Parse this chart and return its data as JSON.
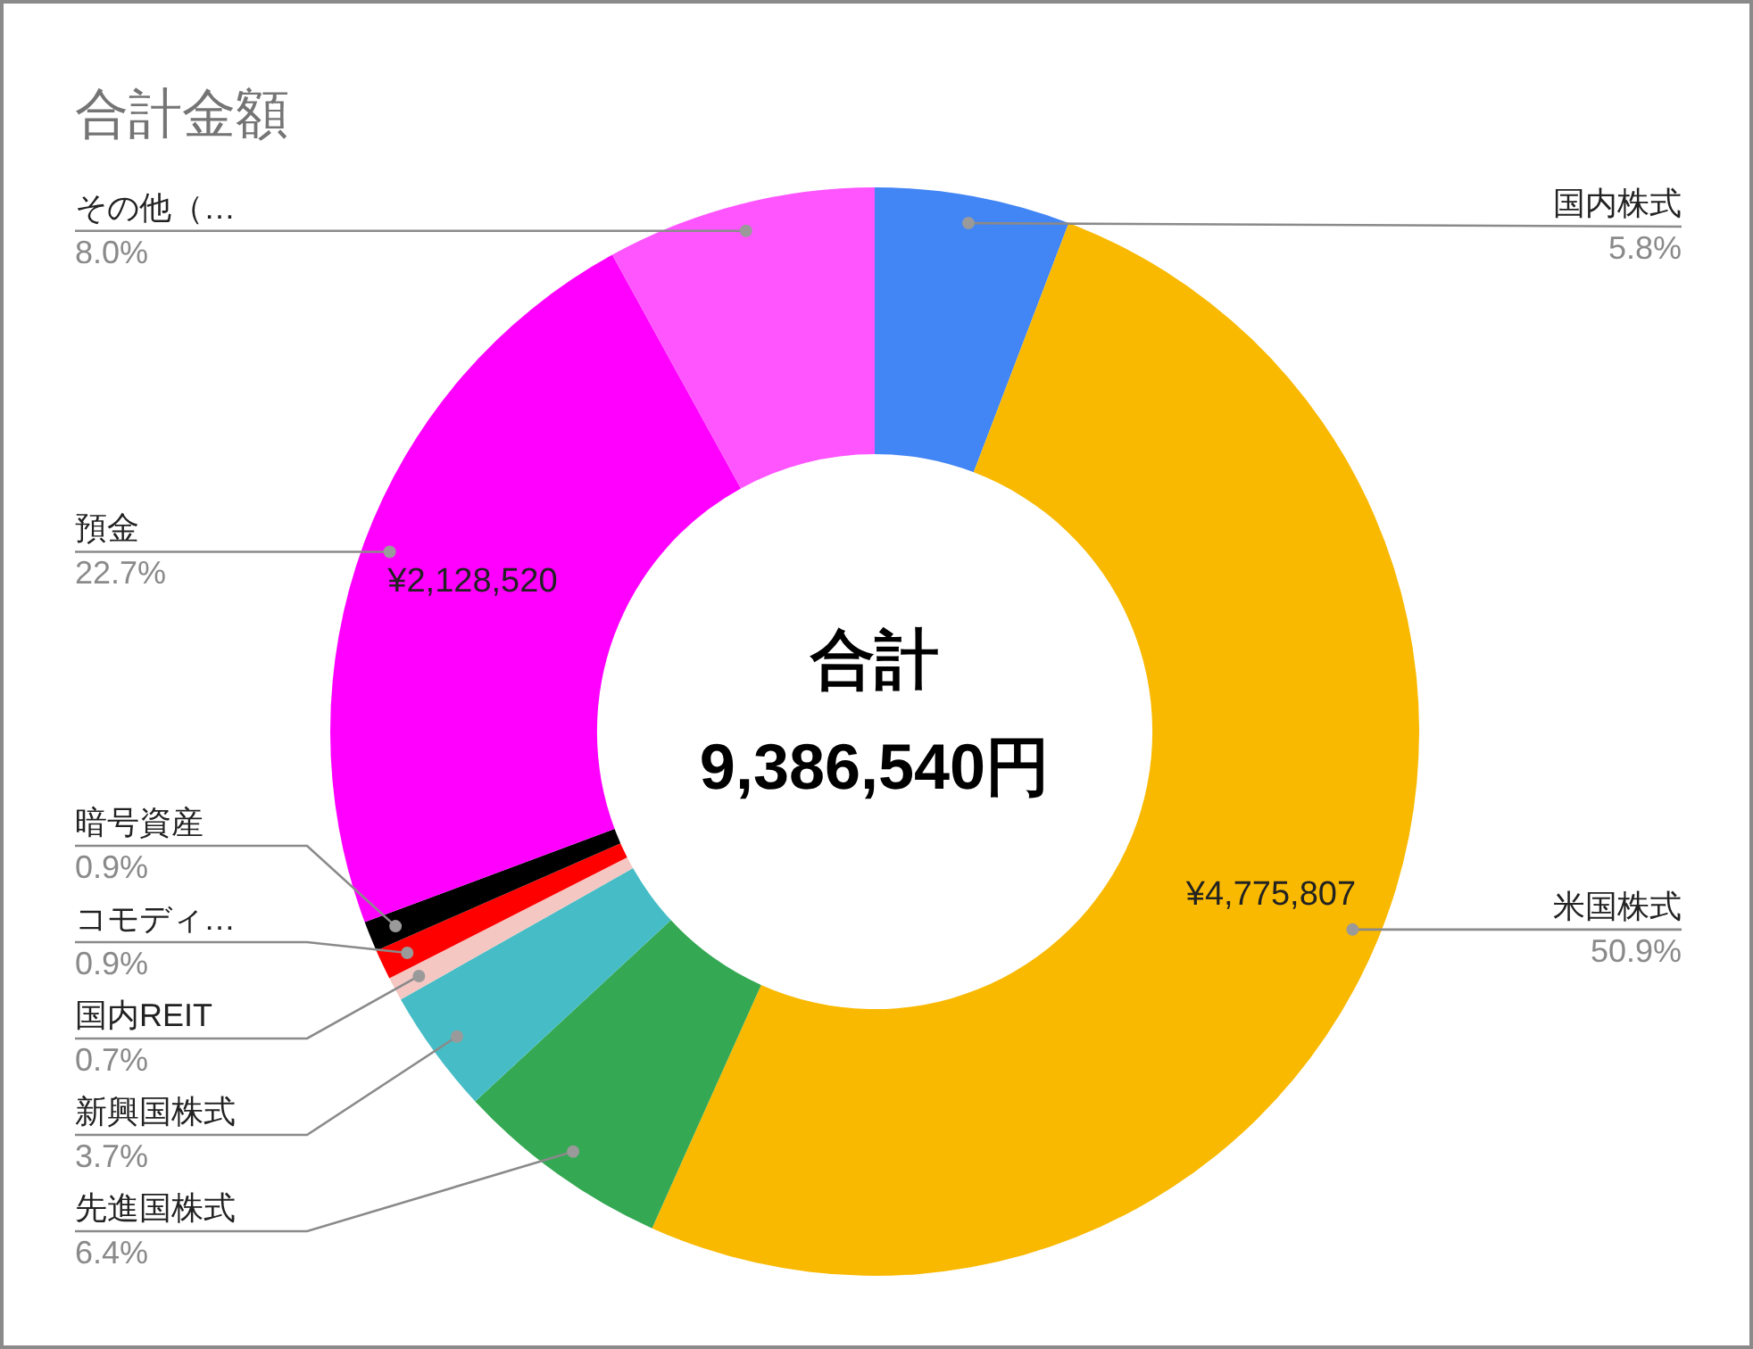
{
  "chart_data": {
    "type": "donut",
    "title": "合計金額",
    "categories": [
      "国内株式",
      "米国株式",
      "先進国株式",
      "新興国株式",
      "国内REIT",
      "コモディ…",
      "暗号資産",
      "預金",
      "その他（…"
    ],
    "values": [
      544000,
      4775807,
      601000,
      347000,
      66000,
      84000,
      84000,
      2128520,
      751000
    ],
    "colors": [
      "#4285f4",
      "#f9b900",
      "#34a853",
      "#46bdc6",
      "#f4c7c3",
      "#ff0000",
      "#000000",
      "#ff00ff",
      "#ff55ff"
    ],
    "value_labels": [
      null,
      "¥4,775,807",
      null,
      null,
      null,
      null,
      null,
      "¥2,128,520",
      null
    ],
    "annotations": [
      "合計",
      "9,386,540円",
      {
        "text": "5.8%",
        "x": "国内株式"
      },
      {
        "text": "50.9%",
        "x": "米国株式"
      },
      {
        "text": "6.4%",
        "x": "先進国株式"
      },
      {
        "text": "3.7%",
        "x": "新興国株式"
      },
      {
        "text": "0.7%",
        "x": "国内REIT"
      },
      {
        "text": "0.9%",
        "x": "コモディ…"
      },
      {
        "text": "0.9%",
        "x": "暗号資産"
      },
      {
        "text": "22.7%",
        "x": "預金"
      },
      {
        "text": "8.0%",
        "x": "その他（…"
      }
    ]
  }
}
